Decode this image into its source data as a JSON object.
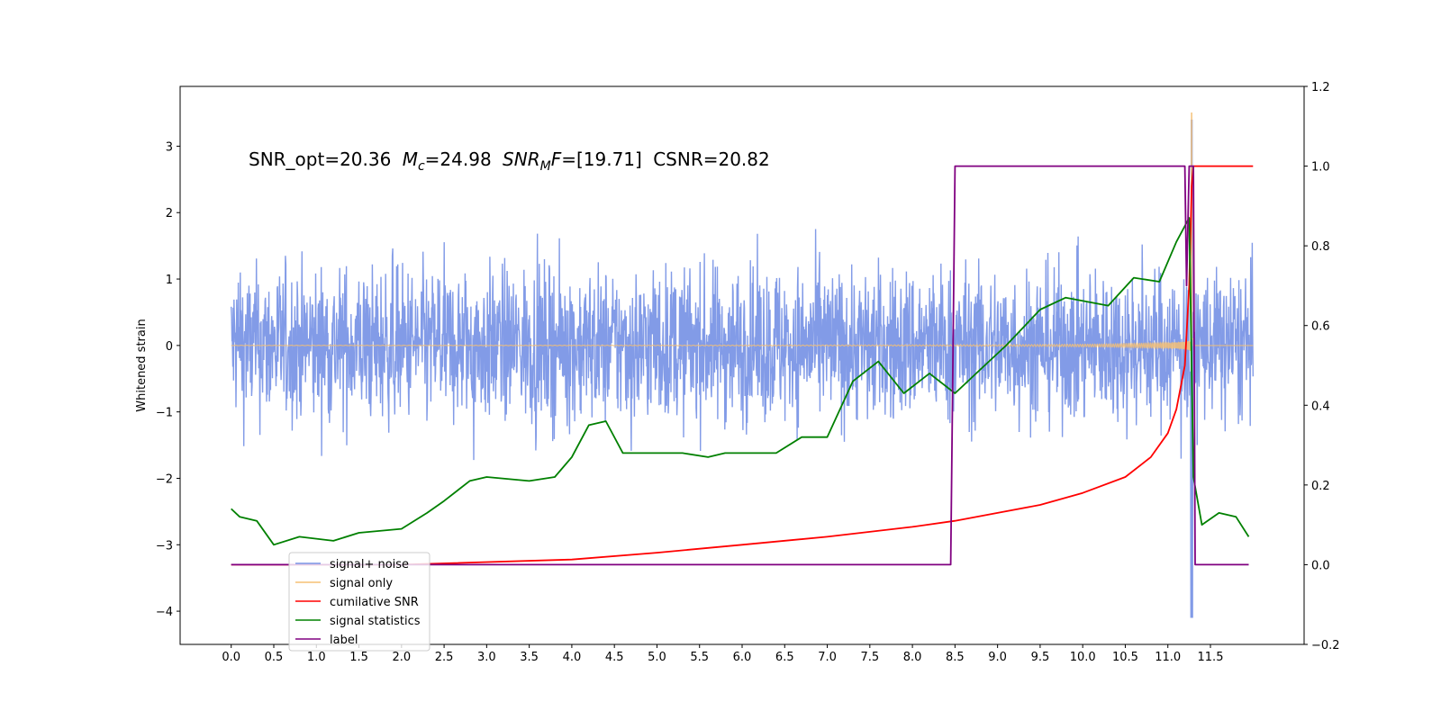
{
  "chart_data": {
    "type": "line",
    "title_parts": {
      "snr_opt": "SNR_opt=20.36",
      "mc_value": "=24.98",
      "snr_mf_value": "=[19.71]",
      "csnr": "CSNR=20.82"
    },
    "ylabel": "Whitened strain",
    "xlim": [
      -0.6,
      12.6
    ],
    "ylim_left": [
      -4.5,
      3.9
    ],
    "ylim_right": [
      -0.2,
      1.2
    ],
    "x_ticks": [
      "0.0",
      "0.5",
      "1.0",
      "1.5",
      "2.0",
      "2.5",
      "3.0",
      "3.5",
      "4.0",
      "4.5",
      "5.0",
      "5.5",
      "6.0",
      "6.5",
      "7.0",
      "7.5",
      "8.0",
      "8.5",
      "9.0",
      "9.5",
      "10.0",
      "10.5",
      "11.0",
      "11.5"
    ],
    "y_ticks_left": [
      "−4",
      "−3",
      "−2",
      "−1",
      "0",
      "1",
      "2",
      "3"
    ],
    "y_ticks_right": [
      "−0.2",
      "0.0",
      "0.2",
      "0.4",
      "0.6",
      "0.8",
      "1.0",
      "1.2"
    ],
    "colors": {
      "signal_noise": "#7b96e6",
      "signal_only": "#f5c074",
      "cumulative_snr": "#ff0000",
      "signal_statistics": "#008000",
      "label": "#800080"
    },
    "series": [
      {
        "name": "signal+ noise",
        "axis": "left",
        "x_range": [
          0.0,
          12.0
        ],
        "amplitude": 1.5,
        "peak_min": -4.1,
        "peak_max": 3.4,
        "peak_x": 11.28
      },
      {
        "name": "signal only",
        "axis": "left",
        "x_range": [
          0.0,
          12.0
        ],
        "peak_max": 3.5,
        "peak_min": -2.3,
        "peak_x": 11.28
      },
      {
        "name": "cumilative SNR",
        "axis": "right",
        "x": [
          0.0,
          2.0,
          4.0,
          5.0,
          6.0,
          7.0,
          8.0,
          8.5,
          9.0,
          9.5,
          10.0,
          10.5,
          10.8,
          11.0,
          11.1,
          11.2,
          11.25,
          11.28,
          11.3,
          12.0
        ],
        "y": [
          0.0,
          0.0,
          0.013,
          0.03,
          0.05,
          0.07,
          0.095,
          0.11,
          0.13,
          0.15,
          0.18,
          0.22,
          0.27,
          0.33,
          0.39,
          0.5,
          0.7,
          0.95,
          1.0,
          1.0
        ]
      },
      {
        "name": "signal statistics",
        "axis": "right",
        "x": [
          0.0,
          0.1,
          0.3,
          0.5,
          0.8,
          1.2,
          1.5,
          2.0,
          2.3,
          2.5,
          2.8,
          3.0,
          3.5,
          3.8,
          4.0,
          4.2,
          4.4,
          4.6,
          5.0,
          5.3,
          5.6,
          5.8,
          6.1,
          6.4,
          6.7,
          7.0,
          7.3,
          7.6,
          7.9,
          8.2,
          8.5,
          8.8,
          9.1,
          9.5,
          9.8,
          10.3,
          10.6,
          10.9,
          11.1,
          11.25,
          11.3,
          11.4,
          11.6,
          11.8,
          11.95
        ],
        "y": [
          0.14,
          0.12,
          0.11,
          0.05,
          0.07,
          0.06,
          0.08,
          0.09,
          0.13,
          0.16,
          0.21,
          0.22,
          0.21,
          0.22,
          0.27,
          0.35,
          0.36,
          0.28,
          0.28,
          0.28,
          0.27,
          0.28,
          0.28,
          0.28,
          0.32,
          0.32,
          0.46,
          0.51,
          0.43,
          0.48,
          0.43,
          0.49,
          0.55,
          0.64,
          0.67,
          0.65,
          0.72,
          0.71,
          0.81,
          0.87,
          0.22,
          0.1,
          0.13,
          0.12,
          0.07
        ]
      },
      {
        "name": "label",
        "axis": "right",
        "x": [
          0.0,
          8.45,
          8.5,
          11.2,
          11.22,
          11.25,
          11.3,
          11.32,
          11.95
        ],
        "y": [
          0.0,
          0.0,
          1.0,
          1.0,
          0.7,
          1.0,
          1.0,
          0.0,
          0.0
        ]
      }
    ],
    "legend": {
      "placement": "lower-left",
      "entries": [
        "signal+ noise",
        "signal only",
        "cumilative SNR",
        "signal statistics",
        "label"
      ]
    },
    "grid": false
  }
}
